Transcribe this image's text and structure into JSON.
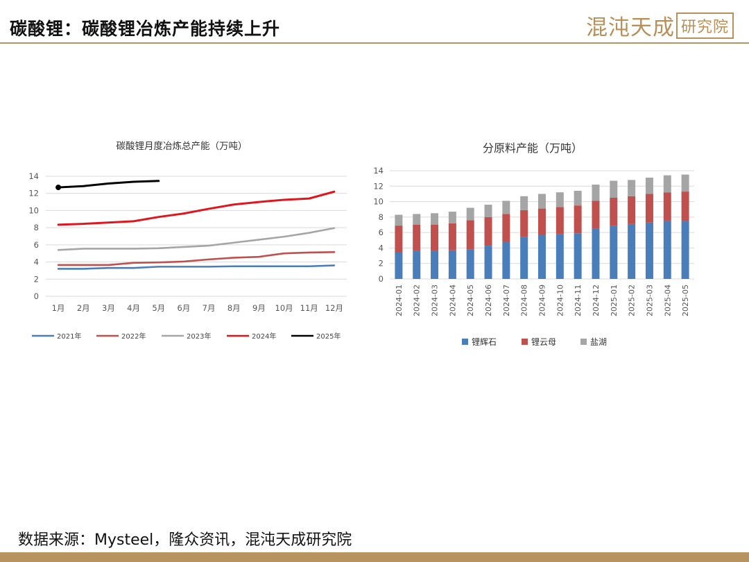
{
  "header": {
    "title": "碳酸锂：碳酸锂冶炼产能持续上升",
    "logo_main": "混沌天成",
    "logo_box": "研究院"
  },
  "footer": {
    "source": "数据来源：Mysteel，隆众资讯，混沌天成研究院"
  },
  "chart_data": [
    {
      "type": "line",
      "title": "碳酸锂月度冶炼总产能（万吨）",
      "categories": [
        "1月",
        "2月",
        "3月",
        "4月",
        "5月",
        "6月",
        "7月",
        "8月",
        "9月",
        "10月",
        "11月",
        "12月"
      ],
      "ylim": [
        0,
        14
      ],
      "yticks": [
        0,
        2,
        4,
        6,
        8,
        10,
        12,
        14
      ],
      "grid": true,
      "legend": "bottom",
      "series": [
        {
          "name": "2021年",
          "color": "#4a7ebb",
          "values": [
            3.2,
            3.2,
            3.3,
            3.3,
            3.45,
            3.45,
            3.45,
            3.5,
            3.5,
            3.5,
            3.5,
            3.6
          ]
        },
        {
          "name": "2022年",
          "color": "#c0504d",
          "values": [
            3.65,
            3.65,
            3.65,
            3.9,
            3.95,
            4.05,
            4.3,
            4.5,
            4.6,
            5.0,
            5.1,
            5.15
          ]
        },
        {
          "name": "2023年",
          "color": "#a5a5a5",
          "values": [
            5.4,
            5.55,
            5.55,
            5.55,
            5.6,
            5.75,
            5.9,
            6.25,
            6.6,
            6.95,
            7.4,
            7.95
          ]
        },
        {
          "name": "2024年",
          "color": "#e0161c",
          "values": [
            8.35,
            8.45,
            8.6,
            8.75,
            9.25,
            9.65,
            10.2,
            10.7,
            11.0,
            11.25,
            11.4,
            12.2
          ]
        },
        {
          "name": "2025年",
          "color": "#000000",
          "values": [
            12.7,
            12.85,
            13.15,
            13.35,
            13.45,
            null,
            null,
            null,
            null,
            null,
            null,
            null
          ]
        }
      ]
    },
    {
      "type": "bar",
      "stacked": true,
      "title": "分原料产能（万吨）",
      "categories": [
        "2024-01",
        "2024-02",
        "2024-03",
        "2024-04",
        "2024-05",
        "2024-06",
        "2024-07",
        "2024-08",
        "2024-09",
        "2024-10",
        "2024-11",
        "2024-12",
        "2025-01",
        "2025-02",
        "2025-03",
        "2025-04",
        "2025-05"
      ],
      "ylim": [
        0,
        14
      ],
      "yticks": [
        0,
        2,
        4,
        6,
        8,
        10,
        12,
        14
      ],
      "grid": true,
      "legend": "bottom",
      "series": [
        {
          "name": "锂辉石",
          "color": "#4a7ebb",
          "values": [
            3.5,
            3.6,
            3.6,
            3.7,
            3.8,
            4.3,
            4.8,
            5.4,
            5.7,
            5.8,
            5.9,
            6.5,
            6.9,
            7.1,
            7.3,
            7.5,
            7.5
          ]
        },
        {
          "name": "锂云母",
          "color": "#c0504d",
          "values": [
            3.4,
            3.4,
            3.4,
            3.5,
            3.8,
            3.7,
            3.6,
            3.5,
            3.4,
            3.5,
            3.6,
            3.6,
            3.6,
            3.6,
            3.7,
            3.7,
            3.8
          ]
        },
        {
          "name": "盐湖",
          "color": "#a5a5a5",
          "values": [
            1.4,
            1.4,
            1.5,
            1.5,
            1.6,
            1.6,
            1.7,
            1.8,
            1.9,
            1.9,
            1.9,
            2.1,
            2.2,
            2.1,
            2.1,
            2.2,
            2.2
          ]
        }
      ]
    }
  ]
}
